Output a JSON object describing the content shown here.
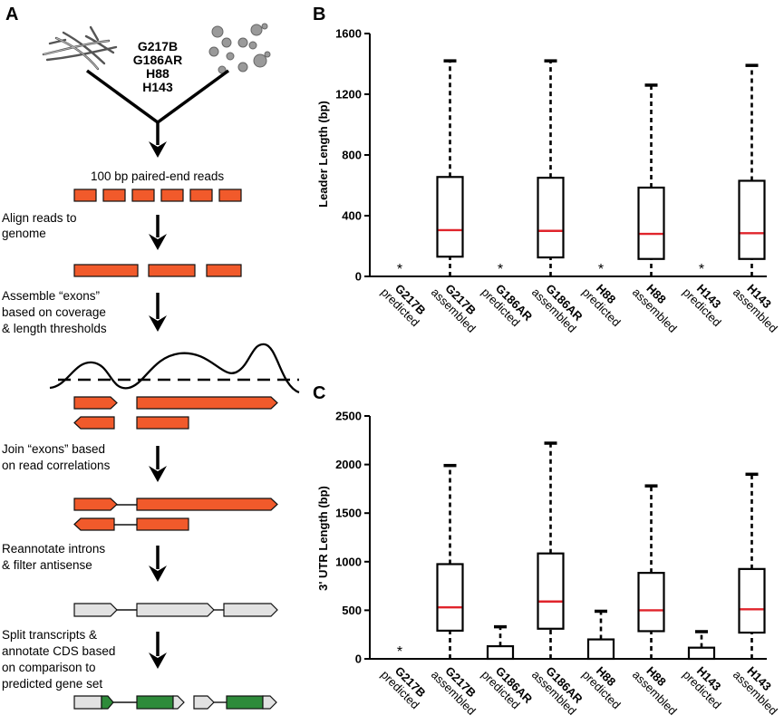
{
  "panel_a": {
    "letter": "A",
    "strains": [
      "G217B",
      "G186AR",
      "H88",
      "H143"
    ],
    "steps": [
      "100 bp paired-end reads",
      "Align reads to",
      "genome",
      "Assemble “exons”",
      "based on coverage",
      "& length thresholds",
      "Join “exons” based",
      "on read correlations",
      "Reannotate introns",
      "& filter antisense",
      "Split transcripts &",
      "annotate CDS based",
      "on comparison to",
      "predicted gene set"
    ],
    "colors": {
      "read": "#f15a2b",
      "gray": "#e2e2e2",
      "green": "#2e8b3a"
    },
    "icons": [
      "hyphae-icon",
      "yeast-icon",
      "arrow-down-icon",
      "coverage-curve-icon"
    ]
  },
  "chart_data": [
    {
      "panel": "B",
      "type": "boxplot",
      "ylabel": "Leader Length (bp)",
      "ylim": [
        0,
        1600
      ],
      "yticks": [
        "0",
        "400",
        "800",
        "1200",
        "1600"
      ],
      "categories": [
        {
          "strain": "G217B",
          "kind": "predicted",
          "star": "*"
        },
        {
          "strain": "G217B",
          "kind": "assembled",
          "q1": 130,
          "median": 305,
          "q3": 655,
          "whisker_high": 1420,
          "whisker_low": 0
        },
        {
          "strain": "G186AR",
          "kind": "predicted",
          "star": "*"
        },
        {
          "strain": "G186AR",
          "kind": "assembled",
          "q1": 125,
          "median": 300,
          "q3": 650,
          "whisker_high": 1420,
          "whisker_low": 0
        },
        {
          "strain": "H88",
          "kind": "predicted",
          "star": "*"
        },
        {
          "strain": "H88",
          "kind": "assembled",
          "q1": 115,
          "median": 280,
          "q3": 585,
          "whisker_high": 1260,
          "whisker_low": 0
        },
        {
          "strain": "H143",
          "kind": "predicted",
          "star": "*"
        },
        {
          "strain": "H143",
          "kind": "assembled",
          "q1": 115,
          "median": 285,
          "q3": 630,
          "whisker_high": 1390,
          "whisker_low": 0
        }
      ],
      "colors": {
        "box": "#111111",
        "median": "#e0242b"
      }
    },
    {
      "panel": "C",
      "type": "boxplot",
      "ylabel": "3' UTR Length (bp)",
      "ylim": [
        0,
        2500
      ],
      "yticks": [
        "0",
        "500",
        "1000",
        "1500",
        "2000",
        "2500"
      ],
      "categories": [
        {
          "strain": "G217B",
          "kind": "predicted",
          "star": "*"
        },
        {
          "strain": "G217B",
          "kind": "assembled",
          "q1": 290,
          "median": 530,
          "q3": 975,
          "whisker_high": 1990,
          "whisker_low": 0
        },
        {
          "strain": "G186AR",
          "kind": "predicted",
          "q1": 0,
          "median": 0,
          "q3": 130,
          "whisker_high": 330,
          "whisker_low": 0
        },
        {
          "strain": "G186AR",
          "kind": "assembled",
          "q1": 310,
          "median": 590,
          "q3": 1085,
          "whisker_high": 2220,
          "whisker_low": 0
        },
        {
          "strain": "H88",
          "kind": "predicted",
          "q1": 0,
          "median": 0,
          "q3": 200,
          "whisker_high": 490,
          "whisker_low": 0
        },
        {
          "strain": "H88",
          "kind": "assembled",
          "q1": 285,
          "median": 500,
          "q3": 885,
          "whisker_high": 1780,
          "whisker_low": 0
        },
        {
          "strain": "H143",
          "kind": "predicted",
          "q1": 0,
          "median": 0,
          "q3": 115,
          "whisker_high": 280,
          "whisker_low": 0
        },
        {
          "strain": "H143",
          "kind": "assembled",
          "q1": 270,
          "median": 510,
          "q3": 925,
          "whisker_high": 1900,
          "whisker_low": 0
        }
      ],
      "colors": {
        "box": "#111111",
        "median": "#e0242b"
      }
    }
  ]
}
